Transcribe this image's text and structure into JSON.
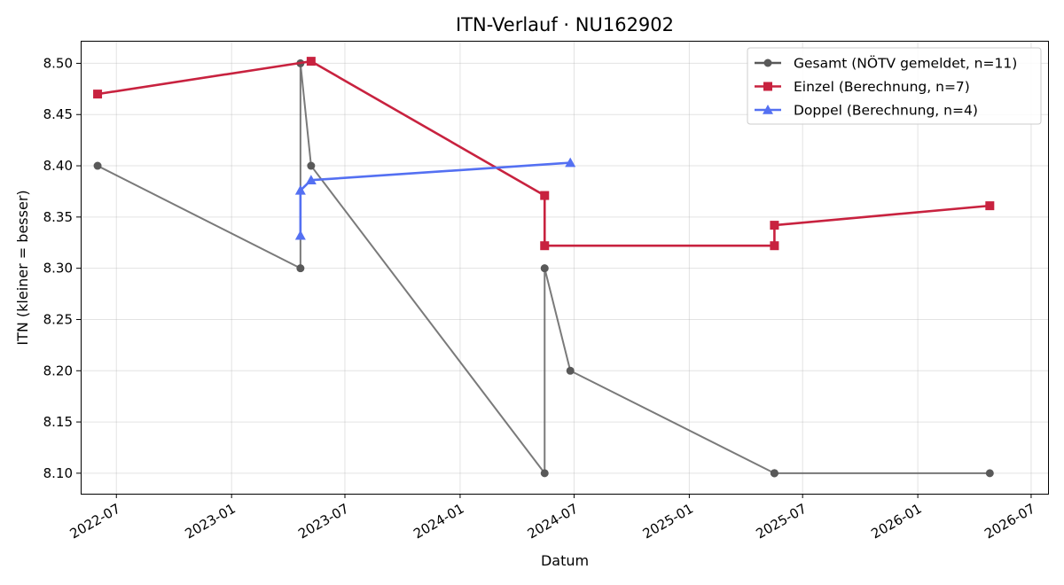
{
  "chart_data": {
    "type": "line",
    "title": "ITN-Verlauf · NU162902",
    "xlabel": "Datum",
    "ylabel": "ITN  (kleiner = besser)",
    "x_type": "date",
    "xlim": [
      "2022-05-05",
      "2026-07-28"
    ],
    "ylim": [
      8.08,
      8.522
    ],
    "grid": true,
    "legend_position": "top-right",
    "x_ticks": [
      {
        "date": "2022-07-01",
        "label": "2022-07"
      },
      {
        "date": "2023-01-01",
        "label": "2023-01"
      },
      {
        "date": "2023-07-01",
        "label": "2023-07"
      },
      {
        "date": "2024-01-01",
        "label": "2024-01"
      },
      {
        "date": "2024-07-01",
        "label": "2024-07"
      },
      {
        "date": "2025-01-01",
        "label": "2025-01"
      },
      {
        "date": "2025-07-01",
        "label": "2025-07"
      },
      {
        "date": "2026-01-01",
        "label": "2026-01"
      },
      {
        "date": "2026-07-01",
        "label": "2026-07"
      }
    ],
    "y_ticks": [
      8.1,
      8.15,
      8.2,
      8.25,
      8.3,
      8.35,
      8.4,
      8.45,
      8.5
    ],
    "series": [
      {
        "name": "Gesamt (NÖTV gemeldet, n=11)",
        "color": "#595959",
        "marker": "circle",
        "points": [
          {
            "x": "2022-06-01",
            "y": 8.4
          },
          {
            "x": "2023-04-21",
            "y": 8.3
          },
          {
            "x": "2023-04-21",
            "y": 8.5
          },
          {
            "x": "2023-05-08",
            "y": 8.4
          },
          {
            "x": "2024-05-15",
            "y": 8.1
          },
          {
            "x": "2024-05-15",
            "y": 8.3
          },
          {
            "x": "2024-06-25",
            "y": 8.2
          },
          {
            "x": "2025-05-17",
            "y": 8.1
          },
          {
            "x": "2025-05-17",
            "y": 8.1
          },
          {
            "x": "2025-05-17",
            "y": 8.1
          },
          {
            "x": "2026-04-26",
            "y": 8.1
          }
        ]
      },
      {
        "name": "Einzel (Berechnung, n=7)",
        "color": "#c8223f",
        "marker": "square",
        "points": [
          {
            "x": "2022-06-01",
            "y": 8.47
          },
          {
            "x": "2023-05-08",
            "y": 8.502
          },
          {
            "x": "2024-05-15",
            "y": 8.371
          },
          {
            "x": "2024-05-15",
            "y": 8.322
          },
          {
            "x": "2025-05-17",
            "y": 8.322
          },
          {
            "x": "2025-05-17",
            "y": 8.342
          },
          {
            "x": "2026-04-26",
            "y": 8.361
          }
        ]
      },
      {
        "name": "Doppel (Berechnung, n=4)",
        "color": "#5470f2",
        "marker": "triangle",
        "points": [
          {
            "x": "2023-04-21",
            "y": 8.332
          },
          {
            "x": "2023-04-21",
            "y": 8.376
          },
          {
            "x": "2023-05-08",
            "y": 8.386
          },
          {
            "x": "2024-06-25",
            "y": 8.403
          }
        ]
      }
    ]
  }
}
